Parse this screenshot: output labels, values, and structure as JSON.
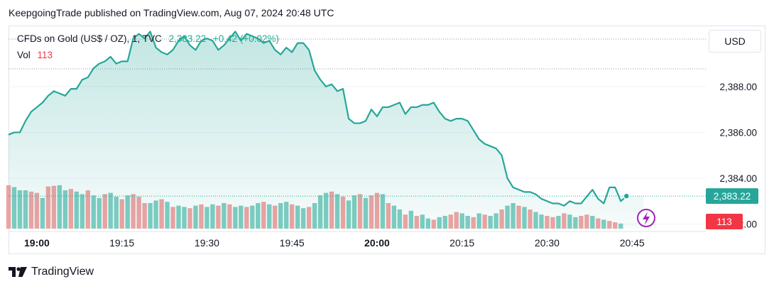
{
  "header": {
    "published_text": "KeepgoingTrade published on TradingView.com, Aug 07, 2024 20:48 UTC"
  },
  "legend": {
    "symbol": "CFDs on Gold (US$ / OZ), 1, TVC",
    "price": "2,383.22",
    "change": "+0.42 (+0.02%)",
    "vol_label": "Vol",
    "vol_value": "113"
  },
  "currency_button": {
    "label": "USD"
  },
  "footer": {
    "brand": "TradingView"
  },
  "colors": {
    "line": "#26a69a",
    "area": "#26a69a",
    "vol_up": "#7fcdc2",
    "vol_down": "#f0a3a3",
    "price_badge": "#26a69a",
    "vol_badge": "#f23645"
  },
  "chart_data": {
    "type": "area",
    "title": "CFDs on Gold (US$ / OZ), 1, TVC",
    "x_ticks": [
      {
        "label": "19:00",
        "t": 0,
        "bold": true
      },
      {
        "label": "19:15",
        "t": 15,
        "bold": false
      },
      {
        "label": "19:30",
        "t": 30,
        "bold": false
      },
      {
        "label": "19:45",
        "t": 45,
        "bold": false
      },
      {
        "label": "20:00",
        "t": 60,
        "bold": true
      },
      {
        "label": "20:15",
        "t": 75,
        "bold": false
      },
      {
        "label": "20:30",
        "t": 90,
        "bold": false
      },
      {
        "label": "20:45",
        "t": 105,
        "bold": false
      }
    ],
    "y_ticks": [
      {
        "label": "2,388.00",
        "v": 2388
      },
      {
        "label": "2,386.00",
        "v": 2386
      },
      {
        "label": "2,384.00",
        "v": 2384
      },
      {
        "label": "2,382.00",
        "v": 2382
      }
    ],
    "ylim": [
      2381.8,
      2390.6
    ],
    "x_range": [
      -5,
      118
    ],
    "last_price_label": "2,383.22",
    "last_price": 2383.22,
    "last_volume_label": "113",
    "series": [
      {
        "name": "Price",
        "x": [
          -5,
          -4,
          -3,
          -2,
          -1,
          0,
          1,
          2,
          3,
          4,
          5,
          6,
          7,
          8,
          9,
          10,
          11,
          12,
          13,
          14,
          15,
          16,
          17,
          18,
          19,
          20,
          21,
          22,
          23,
          24,
          25,
          26,
          27,
          28,
          29,
          30,
          31,
          32,
          33,
          34,
          35,
          36,
          37,
          38,
          39,
          40,
          41,
          42,
          43,
          44,
          45,
          46,
          47,
          48,
          49,
          50,
          51,
          52,
          53,
          54,
          55,
          56,
          57,
          58,
          59,
          60,
          61,
          62,
          63,
          64,
          65,
          66,
          67,
          68,
          69,
          70,
          71,
          72,
          73,
          74,
          75,
          76,
          77,
          78,
          79,
          80,
          81,
          82,
          83,
          84,
          85,
          86,
          87,
          88,
          89,
          90,
          91,
          92,
          93,
          94,
          95,
          96,
          97,
          98,
          99,
          100,
          101,
          102,
          103,
          104,
          105,
          106,
          107
        ],
        "values": [
          2385.9,
          2386.0,
          2386.0,
          2386.5,
          2386.9,
          2387.1,
          2387.3,
          2387.6,
          2387.8,
          2387.7,
          2387.6,
          2387.9,
          2387.9,
          2388.3,
          2388.4,
          2388.8,
          2389.0,
          2389.1,
          2389.3,
          2389.0,
          2389.1,
          2389.1,
          2390.1,
          2390.3,
          2390.1,
          2390.4,
          2389.7,
          2389.5,
          2389.4,
          2389.6,
          2390.0,
          2390.2,
          2389.8,
          2389.6,
          2390.0,
          2390.1,
          2390.0,
          2389.6,
          2389.8,
          2390.1,
          2390.4,
          2390.0,
          2390.3,
          2390.2,
          2390.1,
          2389.9,
          2390.0,
          2389.6,
          2389.4,
          2389.7,
          2389.5,
          2389.9,
          2389.9,
          2389.6,
          2388.7,
          2388.3,
          2388.0,
          2388.1,
          2387.8,
          2387.9,
          2386.6,
          2386.4,
          2386.4,
          2386.5,
          2387.0,
          2386.7,
          2387.1,
          2387.1,
          2387.2,
          2387.3,
          2386.8,
          2387.1,
          2387.1,
          2387.2,
          2387.2,
          2387.3,
          2386.9,
          2386.6,
          2386.5,
          2386.6,
          2386.6,
          2386.5,
          2386.1,
          2385.7,
          2385.5,
          2385.4,
          2385.3,
          2385.0,
          2384.0,
          2383.6,
          2383.5,
          2383.4,
          2383.4,
          2383.3,
          2383.1,
          2383.0,
          2382.9,
          2382.9,
          2382.8,
          2383.0,
          2382.9,
          2382.9,
          2383.2,
          2383.5,
          2383.1,
          2382.9,
          2383.6,
          2383.6,
          2383.0,
          2383.22,
          2383.22,
          2383.22,
          2383.22
        ]
      },
      {
        "name": "Vol",
        "x": [
          -5,
          -4,
          -3,
          -2,
          -1,
          0,
          1,
          2,
          3,
          4,
          5,
          6,
          7,
          8,
          9,
          10,
          11,
          12,
          13,
          14,
          15,
          16,
          17,
          18,
          19,
          20,
          21,
          22,
          23,
          24,
          25,
          26,
          27,
          28,
          29,
          30,
          31,
          32,
          33,
          34,
          35,
          36,
          37,
          38,
          39,
          40,
          41,
          42,
          43,
          44,
          45,
          46,
          47,
          48,
          49,
          50,
          51,
          52,
          53,
          54,
          55,
          56,
          57,
          58,
          59,
          60,
          61,
          62,
          63,
          64,
          65,
          66,
          67,
          68,
          69,
          70,
          71,
          72,
          73,
          74,
          75,
          76,
          77,
          78,
          79,
          80,
          81,
          82,
          83,
          84,
          85,
          86,
          87,
          88,
          89,
          90,
          91,
          92,
          93,
          94,
          95,
          96,
          97,
          98,
          99,
          100,
          101,
          102,
          103,
          104,
          105,
          106,
          107
        ],
        "values": [
          68,
          65,
          60,
          60,
          58,
          56,
          48,
          66,
          67,
          68,
          60,
          62,
          58,
          54,
          60,
          52,
          48,
          54,
          56,
          50,
          46,
          52,
          54,
          50,
          40,
          40,
          44,
          46,
          42,
          34,
          36,
          34,
          32,
          36,
          38,
          34,
          38,
          36,
          40,
          38,
          34,
          36,
          34,
          36,
          40,
          42,
          38,
          36,
          40,
          42,
          38,
          36,
          32,
          34,
          40,
          52,
          56,
          58,
          54,
          50,
          44,
          52,
          54,
          48,
          52,
          56,
          54,
          40,
          36,
          30,
          22,
          28,
          20,
          22,
          16,
          14,
          18,
          20,
          22,
          26,
          24,
          20,
          18,
          24,
          22,
          20,
          24,
          30,
          36,
          40,
          36,
          34,
          30,
          26,
          22,
          20,
          18,
          20,
          24,
          22,
          18,
          20,
          22,
          20,
          16,
          14,
          12,
          10,
          8,
          0,
          0,
          0,
          0
        ],
        "dir": [
          0,
          1,
          1,
          1,
          0,
          0,
          1,
          0,
          0,
          1,
          1,
          0,
          1,
          1,
          0,
          1,
          1,
          0,
          1,
          1,
          0,
          1,
          0,
          0,
          0,
          1,
          1,
          0,
          1,
          0,
          1,
          1,
          0,
          1,
          0,
          1,
          1,
          0,
          1,
          0,
          1,
          1,
          0,
          1,
          1,
          0,
          1,
          0,
          1,
          1,
          0,
          1,
          1,
          0,
          1,
          1,
          1,
          0,
          1,
          0,
          1,
          1,
          0,
          1,
          0,
          0,
          1,
          0,
          1,
          1,
          0,
          1,
          0,
          1,
          1,
          0,
          1,
          1,
          0,
          0,
          1,
          1,
          0,
          1,
          0,
          1,
          1,
          0,
          1,
          1,
          0,
          1,
          0,
          1,
          1,
          0,
          0,
          1,
          0,
          1,
          1,
          0,
          0,
          1,
          0,
          1,
          0,
          0,
          1,
          0,
          0,
          0,
          0
        ]
      }
    ]
  }
}
